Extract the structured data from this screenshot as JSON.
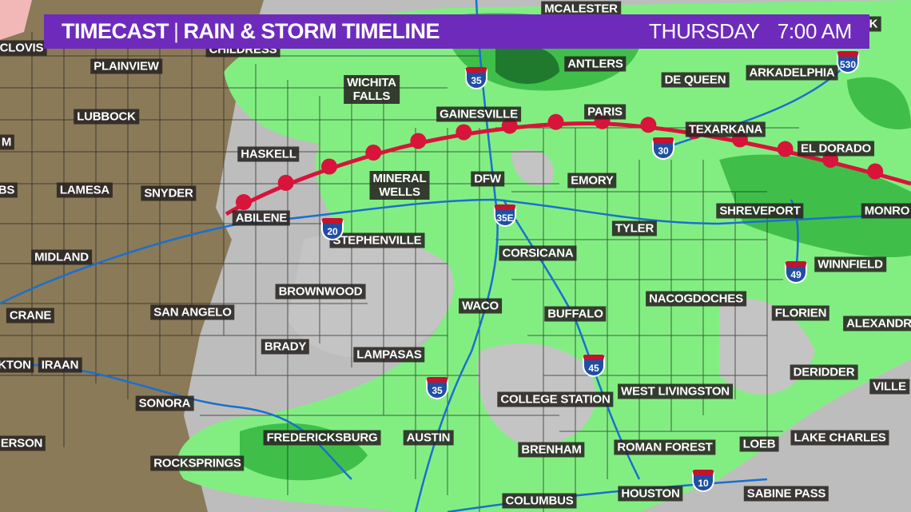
{
  "banner": {
    "title": "TIMECAST",
    "subtitle": "RAIN & STORM TIMELINE",
    "day": "THURSDAY",
    "time": "7:00 AM",
    "color": "#6e2bbb"
  },
  "legend_colors": {
    "light_rain": "#7ef07e",
    "moderate_rain": "#3fbf4a",
    "heavy_rain": "#1f7a2e",
    "warm_front": "#d8143a",
    "highways": "#1a6fd0"
  },
  "front": {
    "type": "warm-front"
  },
  "cities": [
    "MCALESTER",
    "CLOVIS",
    "CHILDRESS",
    "PLAINVIEW",
    "ANTLERS",
    "DE QUEEN",
    "ARKADELPHIA",
    "WICHITA\nFALLS",
    "LUBBOCK",
    "GAINESVILLE",
    "PARIS",
    "TEXARKANA",
    "EL DORADO",
    "HASKELL",
    "M",
    "BS",
    "LAMESA",
    "SNYDER",
    "MINERAL\nWELLS",
    "DFW",
    "EMORY",
    "ABILENE",
    "SHREVEPORT",
    "MONRO",
    "STEPHENVILLE",
    "TYLER",
    "MIDLAND",
    "CORSICANA",
    "WINNFIELD",
    "BROWNWOOD",
    "NACOGDOCHES",
    "CRANE",
    "SAN ANGELO",
    "WACO",
    "BUFFALO",
    "FLORIEN",
    "ALEXANDR",
    "BRADY",
    "LAMPASAS",
    "KTON",
    "IRAAN",
    "DERIDDER",
    "VILLE",
    "SONORA",
    "COLLEGE STATION",
    "WEST LIVINGSTON",
    "ERSON",
    "FREDERICKSBURG",
    "AUSTIN",
    "ROMAN FOREST",
    "LOEB",
    "LAKE CHARLES",
    "BRENHAM",
    "ROCKSPRINGS",
    "HOUSTON",
    "SABINE PASS",
    "COLUMBUS",
    "K"
  ],
  "highways": [
    "35",
    "530",
    "30",
    "35E",
    "20",
    "49",
    "45",
    "35",
    "10"
  ]
}
